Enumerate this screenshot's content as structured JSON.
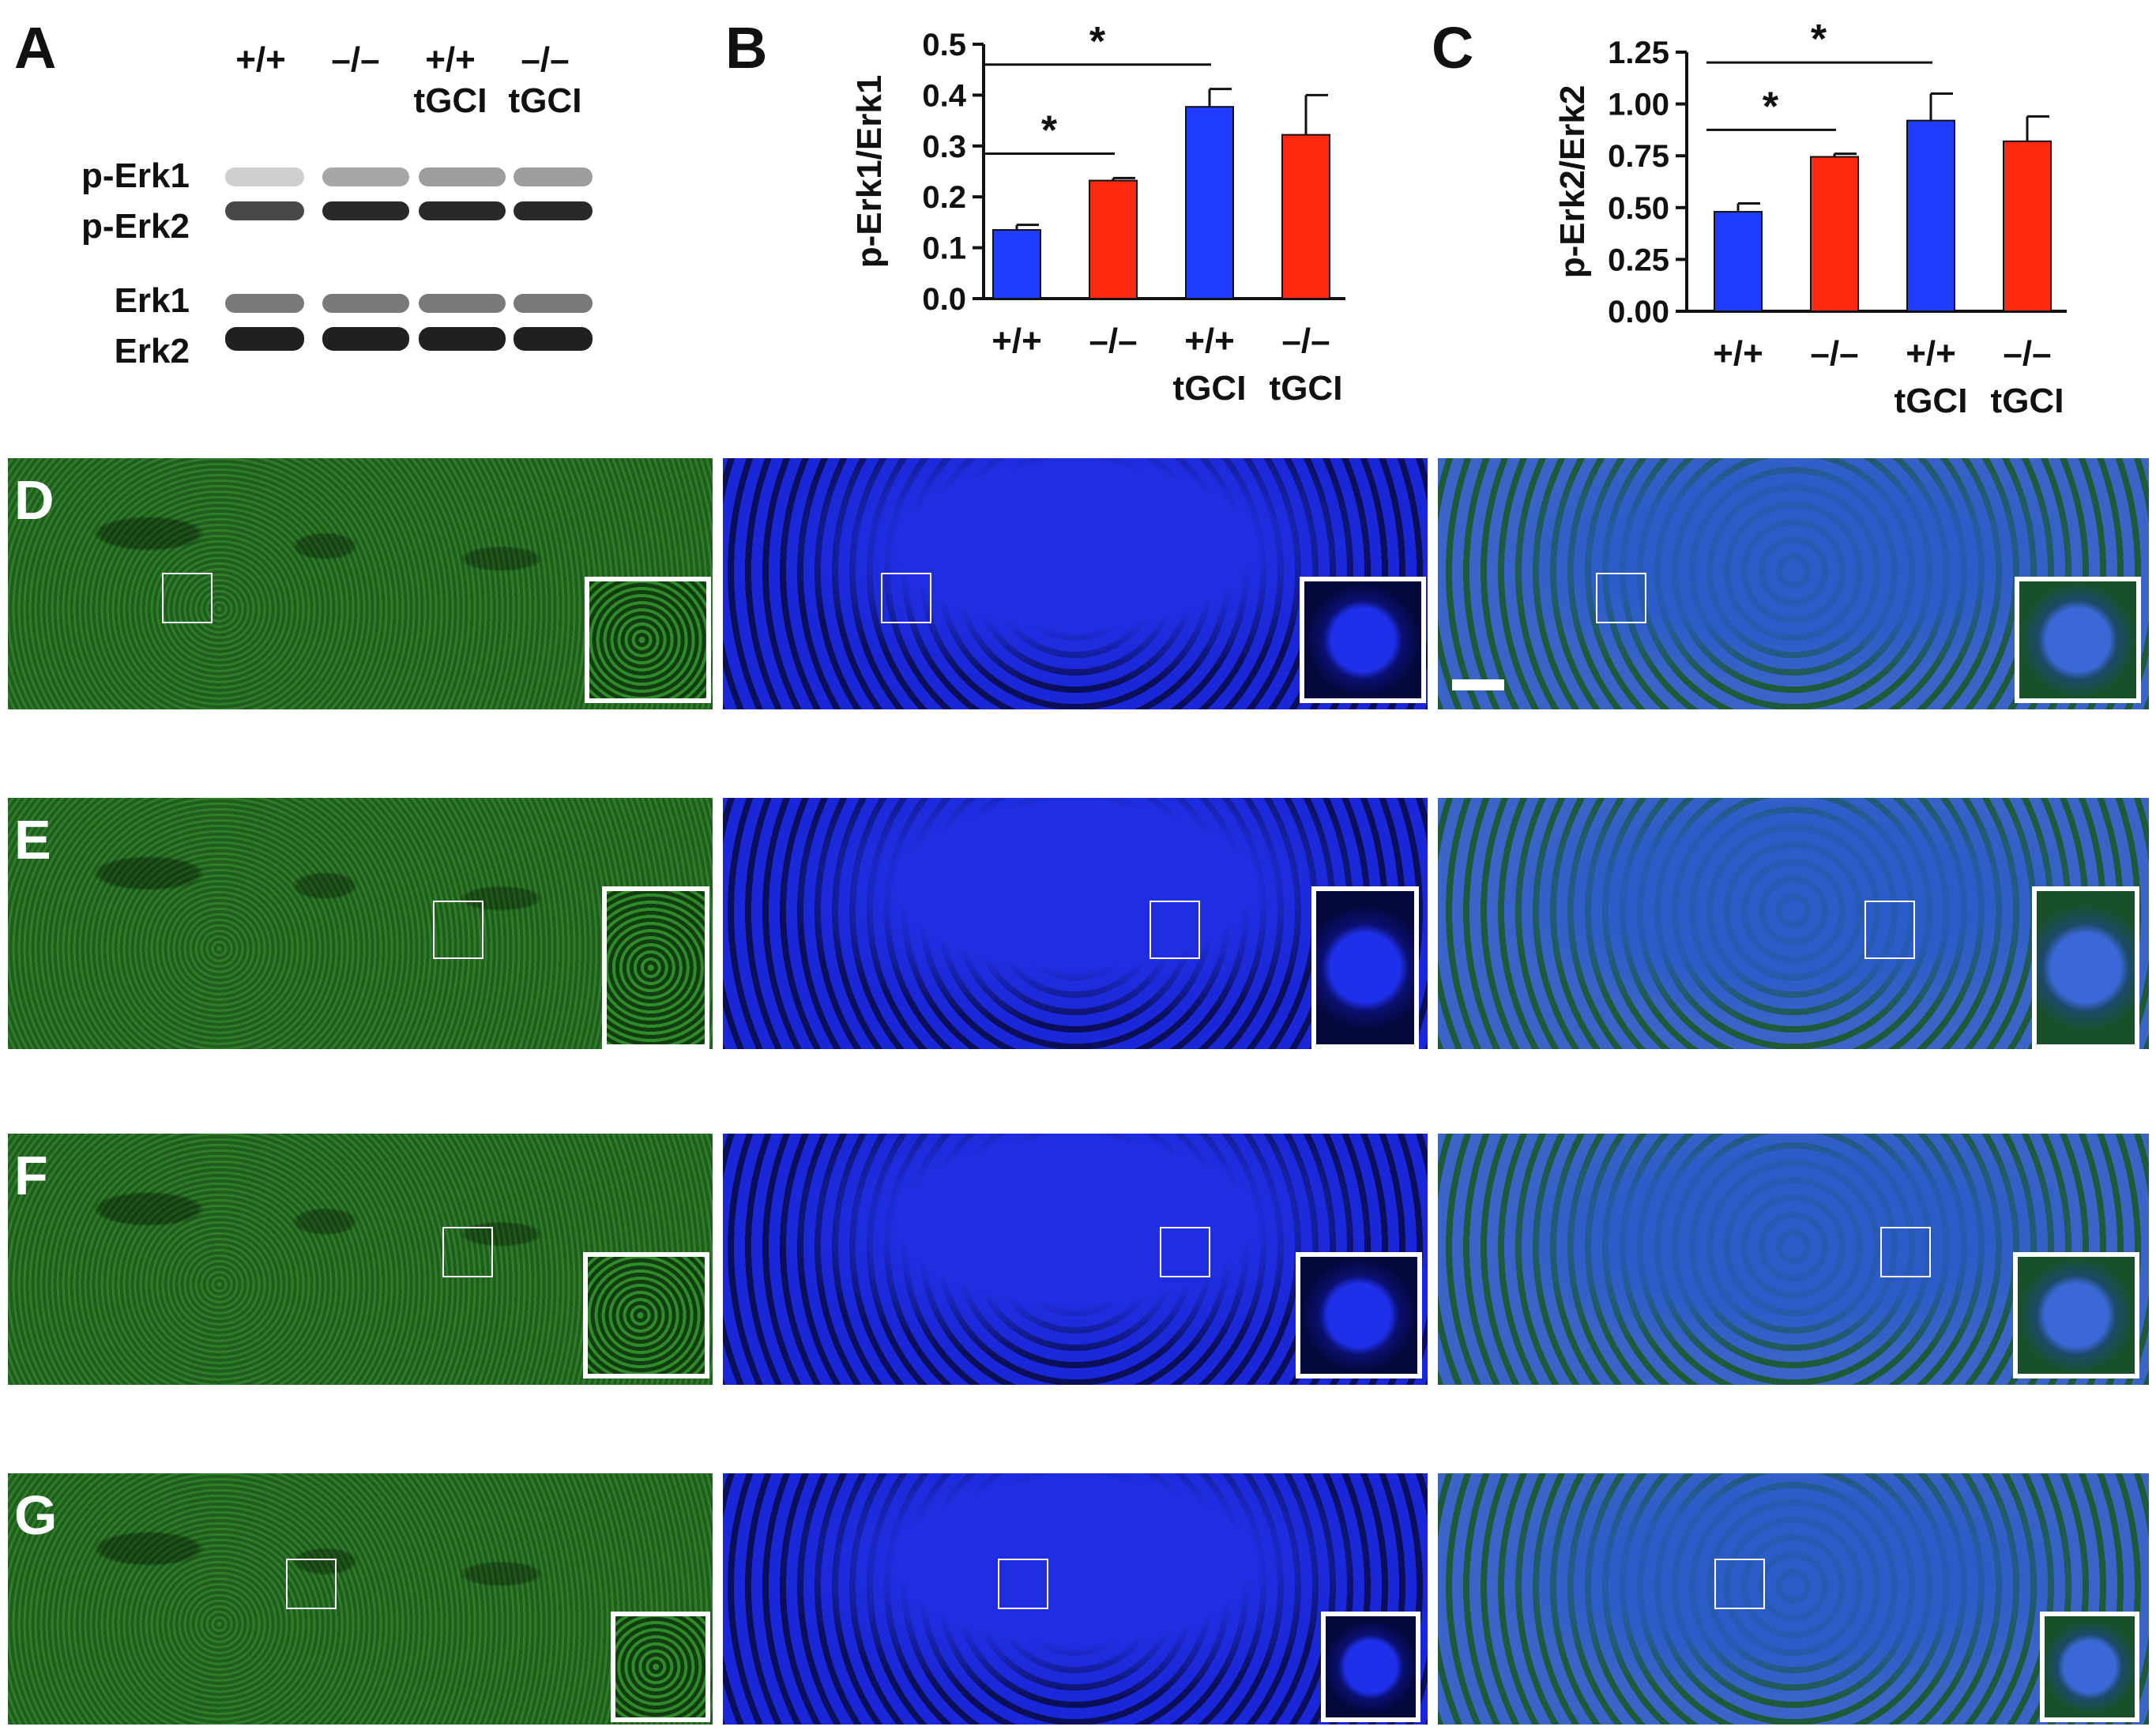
{
  "panel_letters": {
    "a": "A",
    "b": "B",
    "c": "C",
    "d": "D",
    "e": "E",
    "f": "F",
    "g": "G"
  },
  "blot": {
    "lanes": [
      {
        "line1": "",
        "line2": "+/+"
      },
      {
        "line1": "",
        "line2": "–/–"
      },
      {
        "line1": "+/+",
        "line2": "tGCI"
      },
      {
        "line1": "–/–",
        "line2": "tGCI"
      }
    ],
    "rows": [
      "p-Erk1",
      "p-Erk2",
      "Erk1",
      "Erk2"
    ]
  },
  "chart_data": [
    {
      "type": "bar",
      "panel": "B",
      "ylabel": "p-Erk1/Erk1",
      "ylim": [
        0,
        0.5
      ],
      "yticks": [
        "0.0",
        "0.1",
        "0.2",
        "0.3",
        "0.4",
        "0.5"
      ],
      "categories": [
        {
          "line1": "+/+",
          "line2": ""
        },
        {
          "line1": "–/–",
          "line2": ""
        },
        {
          "line1": "+/+",
          "line2": "tGCI"
        },
        {
          "line1": "–/–",
          "line2": "tGCI"
        }
      ],
      "values": [
        0.135,
        0.232,
        0.377,
        0.322
      ],
      "errors": [
        0.01,
        0.005,
        0.035,
        0.078
      ],
      "colors": [
        "#1f3cff",
        "#ff2a10",
        "#1f3cff",
        "#ff2a10"
      ],
      "significance": [
        {
          "from": 0,
          "to": 1,
          "y": 0.285,
          "label": "*"
        },
        {
          "from": 0,
          "to": 2,
          "y": 0.46,
          "label": "*"
        }
      ]
    },
    {
      "type": "bar",
      "panel": "C",
      "ylabel": "p-Erk2/Erk2",
      "ylim": [
        0,
        1.25
      ],
      "yticks": [
        "0.00",
        "0.25",
        "0.50",
        "0.75",
        "1.00",
        "1.25"
      ],
      "categories": [
        {
          "line1": "+/+",
          "line2": ""
        },
        {
          "line1": "–/–",
          "line2": ""
        },
        {
          "line1": "+/+",
          "line2": "tGCI"
        },
        {
          "line1": "–/–",
          "line2": "tGCI"
        }
      ],
      "values": [
        0.48,
        0.745,
        0.92,
        0.82
      ],
      "errors": [
        0.04,
        0.015,
        0.13,
        0.12
      ],
      "colors": [
        "#1f3cff",
        "#ff2a10",
        "#1f3cff",
        "#ff2a10"
      ],
      "significance": [
        {
          "from": 0,
          "to": 1,
          "y": 0.875,
          "label": "*"
        },
        {
          "from": 0,
          "to": 2,
          "y": 1.2,
          "label": "*"
        }
      ]
    }
  ]
}
